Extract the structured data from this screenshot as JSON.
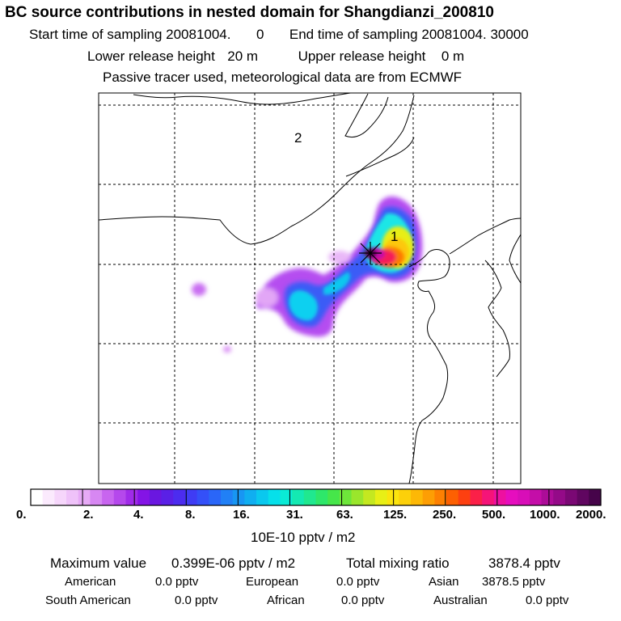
{
  "header": {
    "title": "BC  source contributions in nested domain for Shangdianzi_200810",
    "start_label": "Start time of sampling 20081004.",
    "start_value": "0",
    "end_label": "End time of sampling 20081004. 30000",
    "lower_label": "Lower release height",
    "lower_value": "20 m",
    "upper_label": "Upper release height",
    "upper_value": "0 m",
    "tracer_note": "Passive tracer used, meteorological data are from ECMWF"
  },
  "map": {
    "station_markers": [
      "1",
      "2"
    ]
  },
  "colorbar": {
    "ticks": [
      "0.",
      "2.",
      "4.",
      "8.",
      "16.",
      "31.",
      "63.",
      "125.",
      "250.",
      "500.",
      "1000.",
      "2000."
    ],
    "unit": "10E-10 pptv / m2",
    "colors": [
      "#ffffff",
      "#fbeafd",
      "#f6d6fb",
      "#efc2f9",
      "#e7aaf6",
      "#d787f2",
      "#c865ef",
      "#b548ec",
      "#a02be9",
      "#8414e6",
      "#6a17e0",
      "#5a20e6",
      "#4c2cef",
      "#3f3cf4",
      "#3450f8",
      "#2a66f8",
      "#2180f6",
      "#1896f3",
      "#10aef0",
      "#0ac8ee",
      "#06e0ea",
      "#0aebd6",
      "#14e9b2",
      "#20e88f",
      "#2ee76a",
      "#46e64a",
      "#6ee63a",
      "#9ae62c",
      "#c4e820",
      "#e8ef16",
      "#fbe40e",
      "#fcd00a",
      "#fdb806",
      "#fd9e04",
      "#fd8002",
      "#fd6002",
      "#fd4010",
      "#fb2048",
      "#f51478",
      "#ee10a0",
      "#e60ebe",
      "#d80eb8",
      "#c40ea8",
      "#ac0c98",
      "#940a88",
      "#7a0874",
      "#600660",
      "#46044a"
    ]
  },
  "stats": {
    "max_label": "Maximum value",
    "max_value": "0.399E-06 pptv / m2",
    "total_label": "Total mixing ratio",
    "total_value": "3878.4 pptv",
    "regions": [
      {
        "name": "American",
        "value": "0.0 pptv"
      },
      {
        "name": "European",
        "value": "0.0 pptv"
      },
      {
        "name": "Asian",
        "value": "3878.5 pptv"
      },
      {
        "name": "South American",
        "value": "0.0 pptv"
      },
      {
        "name": "African",
        "value": "0.0 pptv"
      },
      {
        "name": "Australian",
        "value": "0.0 pptv"
      }
    ]
  }
}
